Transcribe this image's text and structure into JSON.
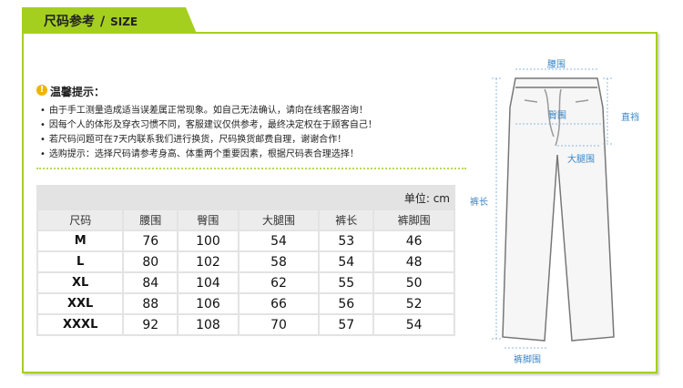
{
  "header": {
    "title": "尺码参考",
    "separator": "/",
    "subtitle": "SIZE"
  },
  "notice": {
    "title": "温馨提示：",
    "items": [
      "由于手工测量造成适当误差属正常现象。如自己无法确认，请向在线客服咨询！",
      "因每个人的体形及穿衣习惯不同，客服建议仅供参考，最终决定权在于顾客自己！",
      "若尺码问题可在7天内联系我们进行换货，尺码换货邮费自理，谢谢合作！",
      "选购提示：选择尺码请参考身高、体重两个重要因素，根据尺码表合理选择！"
    ]
  },
  "table": {
    "unit": "单位: cm",
    "headers": [
      "尺码",
      "腰围",
      "臀围",
      "大腿围",
      "裤长",
      "裤脚围"
    ],
    "rows": [
      [
        "M",
        76,
        100,
        54,
        53,
        46
      ],
      [
        "L",
        80,
        102,
        58,
        54,
        48
      ],
      [
        "XL",
        84,
        104,
        62,
        55,
        50
      ],
      [
        "XXL",
        88,
        106,
        66,
        56,
        52
      ],
      [
        "XXXL",
        92,
        108,
        70,
        57,
        54
      ]
    ]
  },
  "diagram": {
    "waist": "腰围",
    "hip": "臀围",
    "rise": "直裆",
    "thigh": "大腿围",
    "length": "裤长",
    "hem": "裤脚围"
  }
}
